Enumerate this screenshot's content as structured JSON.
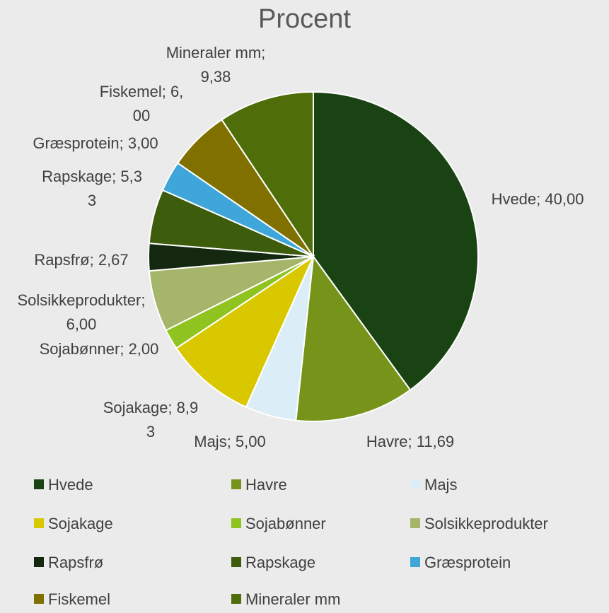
{
  "chart_data": {
    "type": "pie",
    "title": "Procent",
    "categories": [
      "Hvede",
      "Havre",
      "Majs",
      "Sojakage",
      "Sojabønner",
      "Solsikkeprodukter",
      "Rapsfrø",
      "Rapskage",
      "Græsprotein",
      "Fiskemel",
      "Mineraler mm"
    ],
    "values": [
      40.0,
      11.69,
      5.0,
      8.93,
      2.0,
      6.0,
      2.67,
      5.33,
      3.0,
      6.0,
      9.38
    ],
    "value_labels": [
      "Hvede; 40,00",
      "Havre; 11,69",
      "Majs; 5,00",
      "Sojakage; 8,93",
      "Sojabønner; 2,00",
      "Solsikkeprodukter; 6,00",
      "Rapsfrø; 2,67",
      "Rapskage; 5,33",
      "Græsprotein; 3,00",
      "Fiskemel; 6,00",
      "Mineraler mm; 9,38"
    ],
    "colors": [
      "#1a4314",
      "#77941a",
      "#dbeef7",
      "#d9c800",
      "#8fc31f",
      "#a5b56a",
      "#142810",
      "#3d5c0c",
      "#3ea6d8",
      "#7f7000",
      "#4f6e0a"
    ],
    "legend": "bottom"
  }
}
